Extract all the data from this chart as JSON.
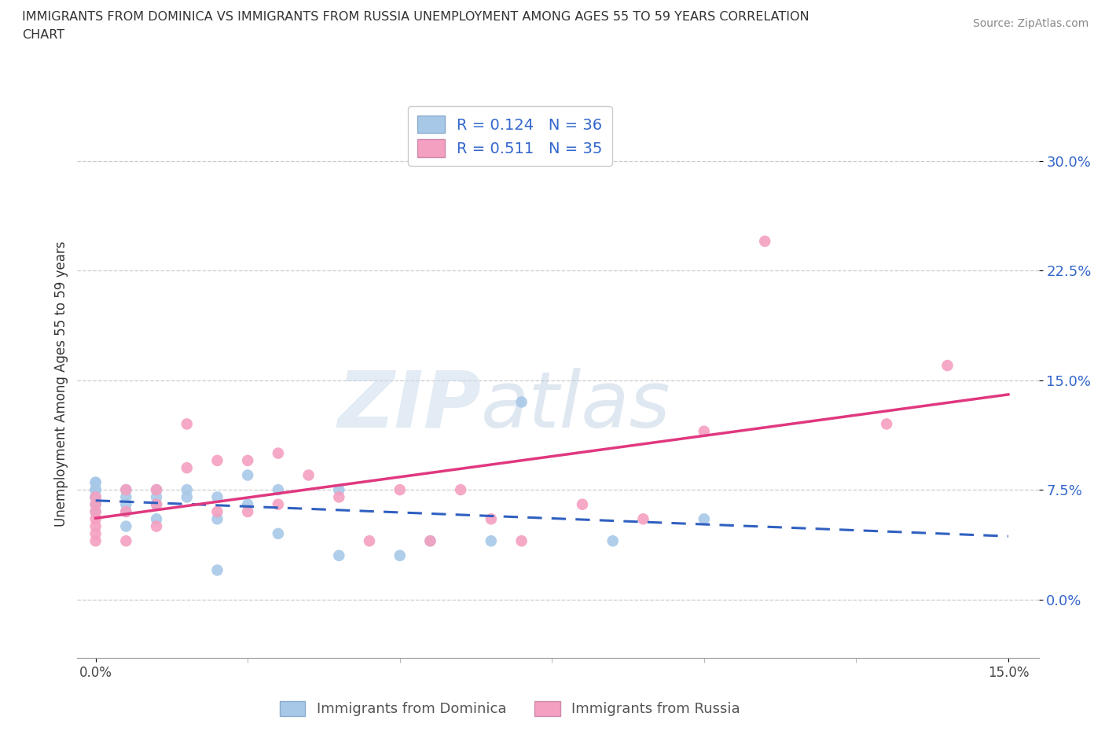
{
  "title_line1": "IMMIGRANTS FROM DOMINICA VS IMMIGRANTS FROM RUSSIA UNEMPLOYMENT AMONG AGES 55 TO 59 YEARS CORRELATION",
  "title_line2": "CHART",
  "source_text": "Source: ZipAtlas.com",
  "legend_bottom_1": "Immigrants from Dominica",
  "legend_bottom_2": "Immigrants from Russia",
  "ylabel": "Unemployment Among Ages 55 to 59 years",
  "xlim": [
    -0.003,
    0.155
  ],
  "ylim": [
    -0.04,
    0.335
  ],
  "ytick_values": [
    0.0,
    0.075,
    0.15,
    0.225,
    0.3
  ],
  "xtick_values": [
    0.0,
    0.15
  ],
  "r_dominica": "0.124",
  "n_dominica": "36",
  "r_russia": "0.511",
  "n_russia": "35",
  "dominica_color": "#a8c8e8",
  "russia_color": "#f4a0c0",
  "dominica_line_color": "#3060c0",
  "russia_line_color": "#e03880",
  "watermark_zip": "ZIP",
  "watermark_atlas": "atlas",
  "dominica_points_x": [
    0.0,
    0.0,
    0.0,
    0.0,
    0.0,
    0.0,
    0.0,
    0.0,
    0.0,
    0.0,
    0.005,
    0.005,
    0.005,
    0.005,
    0.005,
    0.01,
    0.01,
    0.01,
    0.01,
    0.015,
    0.015,
    0.02,
    0.02,
    0.02,
    0.025,
    0.025,
    0.03,
    0.03,
    0.04,
    0.04,
    0.05,
    0.055,
    0.065,
    0.07,
    0.085,
    0.1
  ],
  "dominica_points_y": [
    0.06,
    0.065,
    0.07,
    0.07,
    0.07,
    0.075,
    0.075,
    0.075,
    0.08,
    0.08,
    0.05,
    0.06,
    0.065,
    0.07,
    0.075,
    0.055,
    0.065,
    0.07,
    0.075,
    0.07,
    0.075,
    0.02,
    0.055,
    0.07,
    0.065,
    0.085,
    0.045,
    0.075,
    0.03,
    0.075,
    0.03,
    0.04,
    0.04,
    0.135,
    0.04,
    0.055
  ],
  "russia_points_x": [
    0.0,
    0.0,
    0.0,
    0.0,
    0.0,
    0.0,
    0.0,
    0.005,
    0.005,
    0.005,
    0.01,
    0.01,
    0.01,
    0.015,
    0.015,
    0.02,
    0.02,
    0.025,
    0.025,
    0.03,
    0.03,
    0.035,
    0.04,
    0.045,
    0.05,
    0.055,
    0.06,
    0.065,
    0.07,
    0.08,
    0.09,
    0.1,
    0.11,
    0.13,
    0.14
  ],
  "russia_points_y": [
    0.04,
    0.045,
    0.05,
    0.055,
    0.06,
    0.065,
    0.07,
    0.04,
    0.06,
    0.075,
    0.05,
    0.065,
    0.075,
    0.09,
    0.12,
    0.06,
    0.095,
    0.06,
    0.095,
    0.065,
    0.1,
    0.085,
    0.07,
    0.04,
    0.075,
    0.04,
    0.075,
    0.055,
    0.04,
    0.065,
    0.055,
    0.115,
    0.245,
    0.12,
    0.16
  ]
}
